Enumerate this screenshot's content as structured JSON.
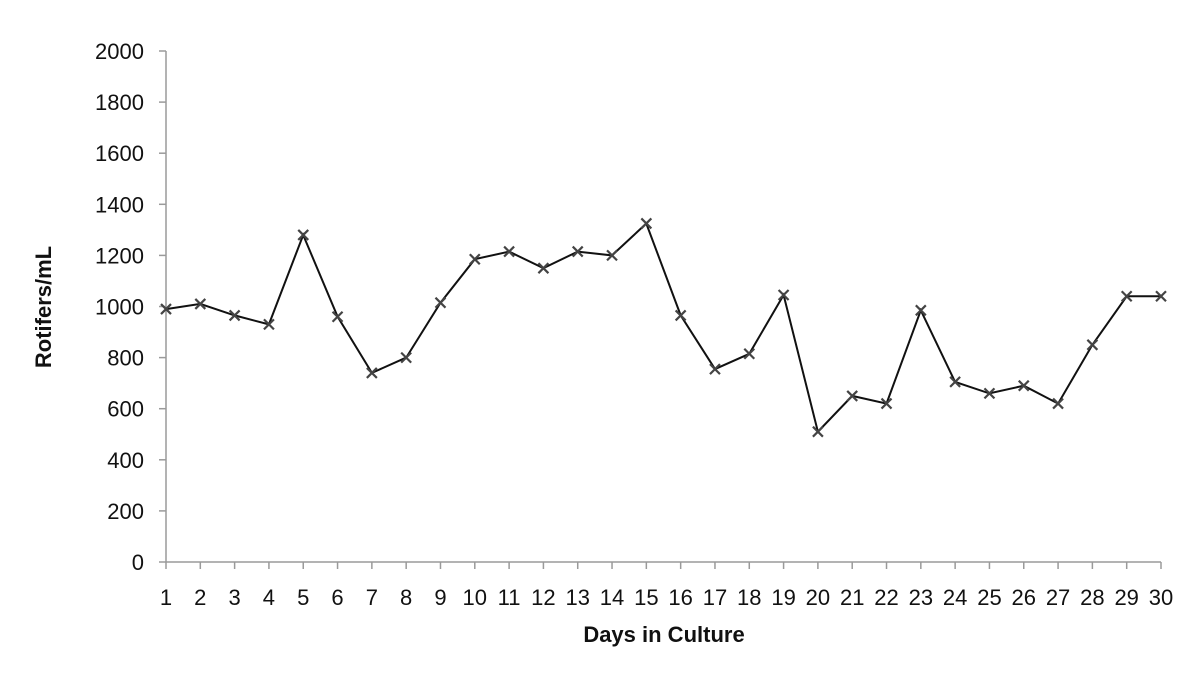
{
  "chart_data": {
    "type": "line",
    "xlabel": "Days in Culture",
    "ylabel": "Rotifers/mL",
    "x": [
      1,
      2,
      3,
      4,
      5,
      6,
      7,
      8,
      9,
      10,
      11,
      12,
      13,
      14,
      15,
      16,
      17,
      18,
      19,
      20,
      21,
      22,
      23,
      24,
      25,
      26,
      27,
      28,
      29,
      30
    ],
    "series": [
      {
        "values": [
          990,
          1010,
          965,
          930,
          1280,
          960,
          740,
          800,
          1015,
          1185,
          1215,
          1150,
          1215,
          1200,
          1325,
          965,
          755,
          815,
          1045,
          510,
          650,
          620,
          985,
          705,
          660,
          690,
          620,
          850,
          1040,
          1040
        ],
        "marker": "x",
        "color": "#111111"
      }
    ],
    "ylim": [
      0,
      2000
    ],
    "yticks": [
      0,
      200,
      400,
      600,
      800,
      1000,
      1200,
      1400,
      1600,
      1800,
      2000
    ],
    "grid": false,
    "legend": "none"
  }
}
